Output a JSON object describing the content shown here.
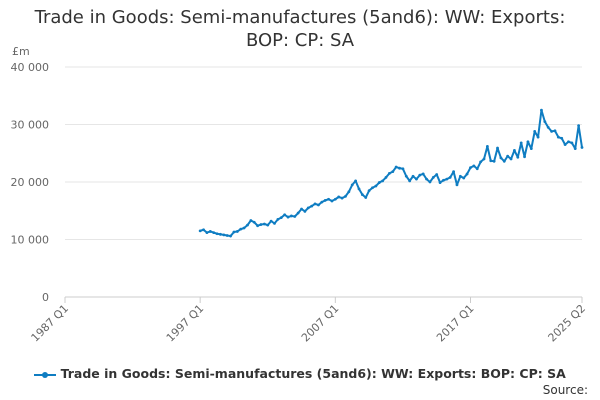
{
  "chart_data": {
    "type": "line",
    "title": "Trade in Goods: Semi-manufactures (5and6): WW: Exports: BOP: CP: SA",
    "ylabel": "£m",
    "source": "Source:",
    "categories": [
      "1987 Q1",
      null,
      null,
      null,
      null,
      null,
      null,
      null,
      null,
      null,
      null,
      null,
      null,
      null,
      null,
      null,
      null,
      null,
      null,
      null,
      null,
      null,
      null,
      null,
      null,
      null,
      null,
      null,
      null,
      null,
      null,
      null,
      null,
      null,
      null,
      null,
      null,
      null,
      null,
      null,
      "1997 Q1",
      null,
      null,
      null,
      null,
      null,
      null,
      null,
      null,
      null,
      null,
      null,
      null,
      null,
      null,
      null,
      null,
      null,
      null,
      null,
      null,
      null,
      null,
      null,
      null,
      null,
      null,
      null,
      null,
      null,
      null,
      null,
      null,
      null,
      null,
      null,
      null,
      null,
      null,
      null,
      "2007 Q1",
      null,
      null,
      null,
      null,
      null,
      null,
      null,
      null,
      null,
      null,
      null,
      null,
      null,
      null,
      null,
      null,
      null,
      null,
      null,
      null,
      null,
      null,
      null,
      null,
      null,
      null,
      null,
      null,
      null,
      null,
      null,
      null,
      null,
      null,
      null,
      null,
      null,
      null,
      null,
      "2017 Q1",
      null,
      null,
      null,
      null,
      null,
      null,
      null,
      null,
      null,
      null,
      null,
      null,
      null,
      null,
      null,
      null,
      null,
      null,
      null,
      null,
      null,
      null,
      null,
      null,
      null,
      null,
      null,
      null,
      null,
      null,
      null,
      null,
      "2025 Q2"
    ],
    "series": [
      {
        "name": "Trade in Goods: Semi-manufactures (5and6): WW: Exports: BOP: CP: SA",
        "color": "#0f7dc2",
        "values": [
          null,
          null,
          null,
          null,
          null,
          null,
          null,
          null,
          null,
          null,
          null,
          null,
          null,
          null,
          null,
          null,
          null,
          null,
          null,
          null,
          null,
          null,
          null,
          null,
          null,
          null,
          null,
          null,
          null,
          null,
          null,
          null,
          null,
          null,
          null,
          null,
          null,
          null,
          null,
          null,
          11500,
          11700,
          11200,
          11400,
          11200,
          11000,
          10900,
          10800,
          10700,
          10600,
          11300,
          11400,
          11800,
          12000,
          12500,
          13300,
          13000,
          12400,
          12600,
          12700,
          12500,
          13200,
          12800,
          13500,
          13800,
          14300,
          13900,
          14100,
          14000,
          14600,
          15300,
          14900,
          15500,
          15800,
          16200,
          16000,
          16500,
          16800,
          17000,
          16700,
          17000,
          17400,
          17200,
          17500,
          18300,
          19500,
          20200,
          18800,
          17800,
          17300,
          18500,
          19000,
          19300,
          19900,
          20200,
          20800,
          21500,
          21800,
          22600,
          22400,
          22300,
          21000,
          20200,
          21000,
          20500,
          21200,
          21400,
          20500,
          20000,
          20800,
          21300,
          19900,
          20300,
          20500,
          20800,
          21800,
          19500,
          21000,
          20700,
          21400,
          22500,
          22800,
          22300,
          23500,
          24000,
          26200,
          23700,
          23600,
          25900,
          24200,
          23600,
          24500,
          24000,
          25500,
          24300,
          26800,
          24400,
          27000,
          25800,
          28800,
          27800,
          32500,
          30500,
          29500,
          28800,
          28900,
          27800,
          27600,
          26500,
          27000,
          26800,
          25800,
          29800,
          26000
        ]
      }
    ],
    "ylim": [
      0,
      40000
    ],
    "yticks": [
      0,
      {
        "value": 10000,
        "label": "10 000"
      },
      {
        "value": 20000,
        "label": "20 000"
      },
      {
        "value": 30000,
        "label": "30 000"
      },
      {
        "value": 40000,
        "label": "40 000"
      }
    ],
    "grid": true
  }
}
